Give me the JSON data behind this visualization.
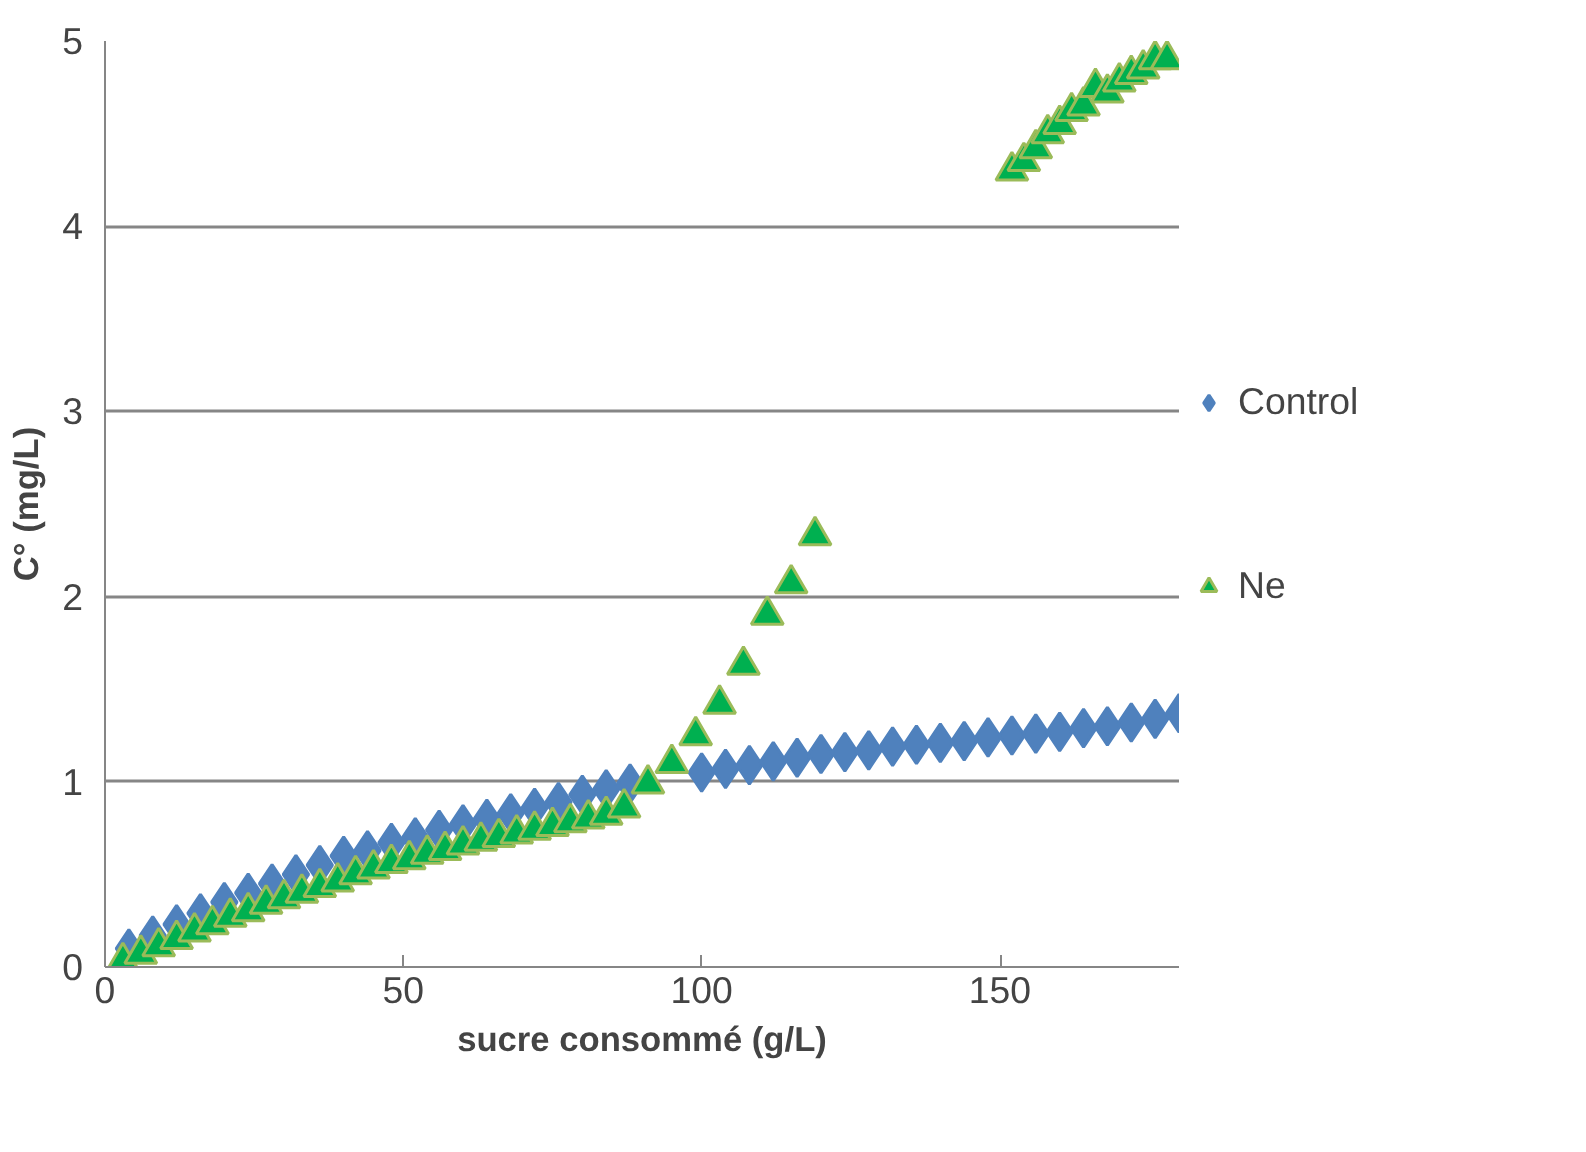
{
  "chart_data": {
    "type": "scatter",
    "xlabel": "sucre consommé (g/L)",
    "ylabel": "C° (mg/L)",
    "xlim": [
      0,
      180
    ],
    "xticks": [
      0,
      50,
      100,
      150
    ],
    "ylim": [
      0,
      5
    ],
    "yticks": [
      0,
      1,
      2,
      3,
      4,
      5
    ],
    "grid": "y",
    "legend": "right",
    "series": [
      {
        "name": "Control",
        "color": "#4f81bd",
        "marker": "diamond",
        "x": [
          4,
          8,
          12,
          16,
          20,
          24,
          28,
          32,
          36,
          40,
          44,
          48,
          52,
          56,
          60,
          64,
          68,
          72,
          76,
          80,
          84,
          88,
          100,
          104,
          108,
          112,
          116,
          120,
          124,
          128,
          132,
          136,
          140,
          144,
          148,
          152,
          156,
          160,
          164,
          168,
          172,
          176,
          180
        ],
        "values": [
          0.1,
          0.17,
          0.23,
          0.29,
          0.35,
          0.4,
          0.45,
          0.5,
          0.55,
          0.6,
          0.63,
          0.67,
          0.7,
          0.74,
          0.77,
          0.8,
          0.83,
          0.86,
          0.89,
          0.93,
          0.96,
          0.99,
          1.05,
          1.07,
          1.09,
          1.11,
          1.13,
          1.15,
          1.16,
          1.17,
          1.19,
          1.2,
          1.21,
          1.22,
          1.24,
          1.25,
          1.26,
          1.27,
          1.29,
          1.3,
          1.32,
          1.34,
          1.37
        ]
      },
      {
        "name": "Ne",
        "color": "#00b050",
        "marker": "triangle",
        "x": [
          3,
          6,
          9,
          12,
          15,
          18,
          21,
          24,
          27,
          30,
          33,
          36,
          39,
          42,
          45,
          48,
          51,
          54,
          57,
          60,
          63,
          66,
          69,
          72,
          75,
          78,
          81,
          84,
          87,
          91,
          95,
          99,
          103,
          107,
          111,
          115,
          119,
          152,
          154,
          156,
          158,
          160,
          162,
          164,
          166,
          168,
          170,
          172,
          174,
          176,
          178
        ],
        "values": [
          0.03,
          0.07,
          0.11,
          0.15,
          0.19,
          0.23,
          0.27,
          0.3,
          0.34,
          0.37,
          0.4,
          0.43,
          0.46,
          0.5,
          0.53,
          0.56,
          0.58,
          0.61,
          0.63,
          0.66,
          0.68,
          0.7,
          0.72,
          0.74,
          0.76,
          0.78,
          0.8,
          0.82,
          0.86,
          0.99,
          1.1,
          1.25,
          1.42,
          1.63,
          1.9,
          2.07,
          2.33,
          4.3,
          4.35,
          4.42,
          4.5,
          4.55,
          4.62,
          4.65,
          4.75,
          4.72,
          4.78,
          4.82,
          4.85,
          4.9,
          4.9
        ]
      }
    ]
  }
}
